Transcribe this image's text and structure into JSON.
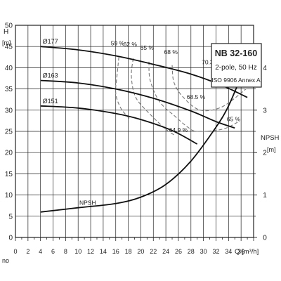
{
  "chart_data": {
    "type": "line",
    "title": "NB 32-160",
    "info_lines": [
      "2-pole, 50 Hz",
      "ISO 9906 Annex A"
    ],
    "y_axis": {
      "label": "H",
      "unit": "[m]",
      "ylim": [
        0,
        50
      ],
      "ticks": [
        0,
        5,
        10,
        15,
        20,
        25,
        30,
        35,
        40,
        45,
        50
      ]
    },
    "x_axis": {
      "label": "Q [m³/h]",
      "xlim": [
        0,
        38
      ],
      "ticks": [
        0,
        2,
        4,
        6,
        8,
        10,
        12,
        14,
        16,
        18,
        20,
        22,
        24,
        26,
        28,
        30,
        32,
        34,
        36
      ]
    },
    "npsh_axis": {
      "label": "NPSH",
      "unit": "[m]",
      "ylim": [
        0,
        5
      ],
      "ticks": [
        0,
        1,
        2,
        3,
        4
      ]
    },
    "bottom_left_fragment": "no",
    "grid": true,
    "head_series": [
      {
        "name": "Ø177",
        "points": [
          [
            4,
            45
          ],
          [
            10,
            44.2
          ],
          [
            16,
            42.8
          ],
          [
            22,
            40.8
          ],
          [
            28,
            38.5
          ],
          [
            33,
            35.8
          ],
          [
            37,
            33
          ]
        ]
      },
      {
        "name": "Ø163",
        "points": [
          [
            4,
            37
          ],
          [
            10,
            36.4
          ],
          [
            16,
            35
          ],
          [
            22,
            32.8
          ],
          [
            28,
            29.8
          ],
          [
            32,
            27.3
          ],
          [
            35,
            25.8
          ]
        ]
      },
      {
        "name": "Ø151",
        "points": [
          [
            4,
            31
          ],
          [
            10,
            30.5
          ],
          [
            16,
            29.2
          ],
          [
            20,
            27.8
          ],
          [
            25,
            25.2
          ],
          [
            29,
            22
          ]
        ]
      }
    ],
    "npsh_series": {
      "name": "NPSH",
      "points": [
        [
          4,
          0.6
        ],
        [
          10,
          0.7
        ],
        [
          16,
          0.8
        ],
        [
          20,
          0.95
        ],
        [
          24,
          1.25
        ],
        [
          28,
          1.8
        ],
        [
          32,
          2.6
        ],
        [
          34,
          3.1
        ],
        [
          36,
          3.8
        ]
      ]
    },
    "efficiency_labels": [
      {
        "text": "59 %",
        "q": 16.3,
        "h": 45.3
      },
      {
        "text": "62 %",
        "q": 18.3,
        "h": 45.0
      },
      {
        "text": "65 %",
        "q": 21.0,
        "h": 44.2
      },
      {
        "text": "68 %",
        "q": 24.8,
        "h": 43.2
      },
      {
        "text": "70.3 %",
        "q": 31.2,
        "h": 40.8
      },
      {
        "text": "68 %",
        "q": 37.0,
        "h": 36.2
      },
      {
        "text": "68.5 %",
        "q": 28.8,
        "h": 32.6
      },
      {
        "text": "65 %",
        "q": 34.8,
        "h": 27.4
      },
      {
        "text": "64.9 %",
        "q": 26.0,
        "h": 24.8
      }
    ],
    "efficiency_contours": [
      [
        [
          16.5,
          42.5
        ],
        [
          16.2,
          38
        ],
        [
          16,
          34
        ],
        [
          16.8,
          30.5
        ],
        [
          18.2,
          28
        ]
      ],
      [
        [
          18.8,
          42.2
        ],
        [
          18.5,
          38
        ],
        [
          19.2,
          33
        ],
        [
          21.5,
          29
        ],
        [
          24,
          25.5
        ],
        [
          25.5,
          24
        ]
      ],
      [
        [
          21.3,
          41.4
        ],
        [
          21.5,
          37
        ],
        [
          23,
          32
        ],
        [
          25.5,
          28.5
        ],
        [
          27.5,
          26
        ],
        [
          29,
          25
        ],
        [
          33,
          25.5
        ],
        [
          35.5,
          27.2
        ]
      ],
      [
        [
          25,
          40.6
        ],
        [
          25.3,
          36.5
        ],
        [
          26.8,
          33
        ],
        [
          29.5,
          30
        ],
        [
          33,
          30.8
        ],
        [
          36.8,
          35
        ]
      ]
    ]
  }
}
